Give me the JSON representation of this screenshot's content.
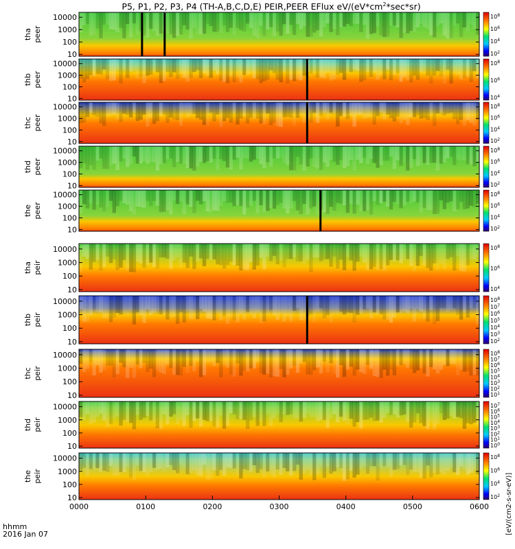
{
  "chart_data": {
    "type": "heatmap",
    "title": "P5, P1, P2, P3, P4 (TH-A,B,C,D,E) PEIR,PEER EFlux eV/(eV*cm",
    "title_sup": "2",
    "title_tail": "*sec*sr)",
    "x_label_line1": "hhmm",
    "x_label_line2": "2016 Jan 07",
    "x_ticks": [
      "0000",
      "0100",
      "0200",
      "0300",
      "0400",
      "0500",
      "0600"
    ],
    "x_range_hours": [
      0,
      6
    ],
    "colorbar_label": "[eV/(cm2-s-sr-eV)]",
    "colorbar_label_short": "eV/(cm^2-s-sr-eV) (4)",
    "y_ticks": [
      "10",
      "100",
      "1000",
      "10000"
    ],
    "y_range_eV": [
      7,
      25000
    ],
    "scale": "log",
    "panels": [
      {
        "name": "tha peer",
        "line1": "tha",
        "line2": "peer",
        "species": "electron",
        "cb_exp": [
          8,
          6,
          4,
          2
        ],
        "high": 2.3,
        "mid": 1.7,
        "bg": "green",
        "gap": [
          0.93,
          1.3
        ],
        "spike": null
      },
      {
        "name": "thb peer",
        "line1": "thb",
        "line2": "peer",
        "species": "electron",
        "cb_exp": [
          8,
          6,
          4
        ],
        "high": 3.9,
        "mid": 3.2,
        "bg": "cyan",
        "gap": null,
        "spike": 3.42
      },
      {
        "name": "thc peer",
        "line1": "thc",
        "line2": "peer",
        "species": "electron",
        "cb_exp": [
          8,
          6,
          4,
          2
        ],
        "high": 4.0,
        "mid": 3.3,
        "bg": "blue",
        "gap": null,
        "spike": 3.42
      },
      {
        "name": "thd peer",
        "line1": "thd",
        "line2": "peer",
        "species": "electron",
        "cb_exp": [
          8,
          6,
          4,
          2
        ],
        "high": 2.0,
        "mid": 1.6,
        "bg": "green",
        "gap": null,
        "spike": null
      },
      {
        "name": "the peer",
        "line1": "the",
        "line2": "peer",
        "species": "electron",
        "cb_exp": [
          8,
          6,
          4,
          2
        ],
        "high": 2.2,
        "mid": 1.7,
        "bg": "green",
        "gap": null,
        "spike": 3.62
      },
      {
        "name": "tha peir",
        "line1": "tha",
        "line2": "peir",
        "species": "ion",
        "cb_exp": [
          8,
          6,
          4
        ],
        "high": 3.9,
        "mid": 2.7,
        "bg": "green",
        "gap": null,
        "spike": null
      },
      {
        "name": "thb peir",
        "line1": "thb",
        "line2": "peir",
        "species": "ion",
        "cb_exp": [
          8,
          7,
          6,
          5,
          4,
          3,
          2
        ],
        "high": 3.5,
        "mid": 3.0,
        "bg": "blue",
        "gap": null,
        "spike": 3.42
      },
      {
        "name": "thc peir",
        "line1": "thc",
        "line2": "peir",
        "species": "ion",
        "cb_exp": [
          8,
          7,
          6,
          5,
          4,
          3,
          2,
          1
        ],
        "high": 4.2,
        "mid": 3.7,
        "bg": "blue",
        "gap": null,
        "spike": null
      },
      {
        "name": "thd peir",
        "line1": "thd",
        "line2": "peir",
        "species": "ion",
        "cb_exp": [
          7,
          6,
          5,
          4,
          3,
          2,
          1,
          0
        ],
        "high": 3.9,
        "mid": 2.6,
        "bg": "green",
        "gap": null,
        "spike": null
      },
      {
        "name": "the peir",
        "line1": "the",
        "line2": "peir",
        "species": "ion",
        "cb_exp": [
          8,
          6,
          4,
          2
        ],
        "high": 3.9,
        "mid": 2.6,
        "bg": "cyan",
        "gap": null,
        "spike": null
      }
    ]
  }
}
